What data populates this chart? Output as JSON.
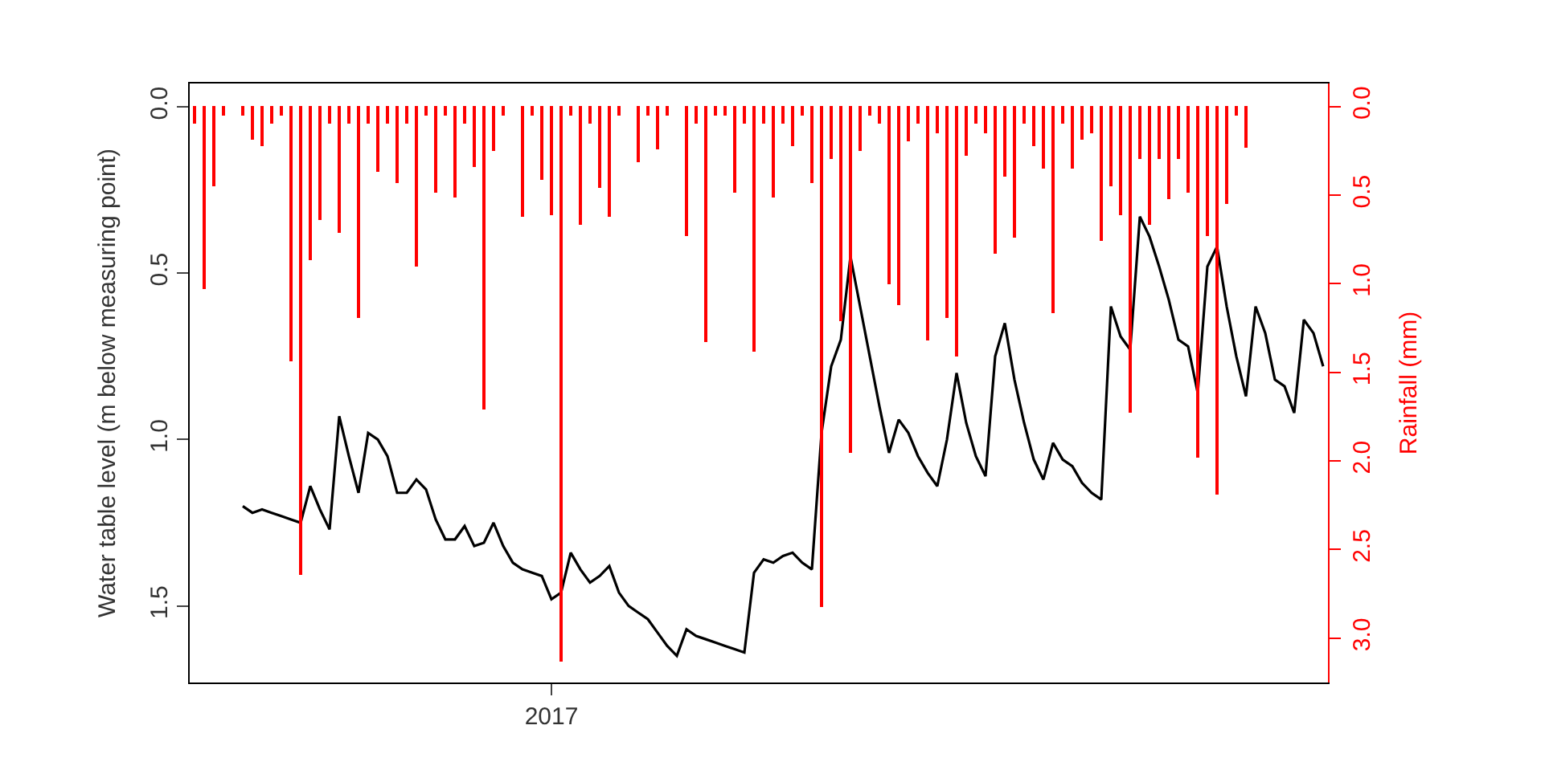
{
  "chart_data": {
    "type": "line",
    "ylabel": "Water table level (m below measuring point)",
    "y2label": "Rainfall (mm)",
    "categories": [
      null,
      null,
      null,
      null,
      null,
      null,
      null,
      null,
      null,
      null,
      null,
      null,
      null,
      null,
      null,
      null,
      null,
      null,
      null,
      null,
      null,
      null,
      null,
      null,
      null,
      null,
      null,
      null,
      null,
      null,
      null,
      null,
      null,
      null,
      null,
      null,
      null,
      "2017",
      null,
      null,
      null,
      null,
      null,
      null,
      null,
      null,
      null,
      null,
      null,
      null,
      null,
      null,
      null,
      null,
      null,
      null,
      null,
      null,
      null,
      null,
      null,
      null,
      null,
      null,
      null,
      null,
      null,
      null,
      null,
      null,
      null,
      null,
      null,
      null,
      null,
      null,
      null,
      null,
      null,
      null,
      null,
      null,
      null,
      null,
      null,
      null,
      null,
      null,
      null,
      null,
      null,
      null,
      null,
      null,
      null,
      null,
      null,
      null,
      null,
      null,
      null,
      null,
      null,
      null,
      null,
      null,
      null,
      null,
      null,
      null,
      null,
      null,
      null,
      null,
      null,
      null,
      null,
      null
    ],
    "series": [
      {
        "type": "bar",
        "axis": "y2",
        "color": "#ff0000",
        "values": [
          0.1,
          1.03,
          0.45,
          0.05,
          0,
          0.05,
          0.19,
          0.22,
          0.1,
          0.05,
          1.44,
          2.64,
          0.87,
          0.64,
          0.1,
          0.71,
          0.1,
          1.19,
          0.1,
          0.37,
          0.1,
          0.43,
          0.1,
          0.9,
          0.05,
          0.49,
          0.05,
          0.51,
          0.1,
          0.34,
          1.71,
          0.25,
          0.05,
          0,
          0.62,
          0.05,
          0.41,
          0.61,
          3.13,
          0.05,
          0.67,
          0.1,
          0.46,
          0.62,
          0.05,
          0,
          0.31,
          0.05,
          0.24,
          0.05,
          0,
          0.73,
          0.1,
          1.33,
          0.05,
          0.05,
          0.49,
          0.1,
          1.38,
          0.1,
          0.51,
          0.1,
          0.22,
          0.05,
          0.43,
          2.82,
          0.3,
          1.21,
          1.95,
          0.25,
          0.05,
          0.1,
          1.0,
          1.12,
          0.2,
          0.1,
          1.32,
          0.15,
          1.19,
          1.41,
          0.28,
          0.1,
          0.15,
          0.83,
          0.4,
          0.74,
          0.1,
          0.22,
          0.35,
          1.17,
          0.1,
          0.35,
          0.19,
          0.15,
          0.76,
          0.45,
          0.61,
          1.73,
          0.3,
          0.67,
          0.3,
          0.52,
          0.3,
          0.49,
          1.98,
          0.73,
          2.19,
          0.55,
          0.05,
          0.23,
          null,
          null,
          null,
          null,
          null,
          null,
          null,
          null
        ]
      },
      {
        "axis": "y",
        "color": "#000000",
        "values": [
          null,
          null,
          null,
          null,
          null,
          1.2,
          1.22,
          1.21,
          1.22,
          1.23,
          1.24,
          1.25,
          1.14,
          1.21,
          1.27,
          0.93,
          1.05,
          1.16,
          0.98,
          1.0,
          1.05,
          1.16,
          1.16,
          1.12,
          1.15,
          1.24,
          1.3,
          1.3,
          1.26,
          1.32,
          1.31,
          1.25,
          1.32,
          1.37,
          1.39,
          1.4,
          1.41,
          1.48,
          1.46,
          1.34,
          1.39,
          1.43,
          1.41,
          1.38,
          1.46,
          1.5,
          1.52,
          1.54,
          1.58,
          1.62,
          1.65,
          1.57,
          1.59,
          1.6,
          1.61,
          1.62,
          1.63,
          1.64,
          1.4,
          1.36,
          1.37,
          1.35,
          1.34,
          1.37,
          1.39,
          0.98,
          0.78,
          0.7,
          0.45,
          0.6,
          0.75,
          0.9,
          1.04,
          0.94,
          0.98,
          1.05,
          1.1,
          1.14,
          1.0,
          0.8,
          0.95,
          1.05,
          1.11,
          0.75,
          0.65,
          0.82,
          0.95,
          1.06,
          1.12,
          1.01,
          1.06,
          1.08,
          1.13,
          1.16,
          1.18,
          0.6,
          0.69,
          0.73,
          0.33,
          0.39,
          0.48,
          0.58,
          0.7,
          0.72,
          0.86,
          0.48,
          0.42,
          0.6,
          0.75,
          0.87,
          0.6,
          0.68,
          0.82,
          0.84,
          0.92,
          0.64,
          0.68,
          0.78
        ]
      }
    ],
    "ylim": [
      1.73,
      -0.07
    ],
    "yticks": [
      {
        "value": 0,
        "label": "0.0"
      },
      0.5,
      {
        "value": 1,
        "label": "1.0"
      },
      1.5
    ],
    "y2lim": [
      3.25,
      -0.13
    ],
    "y2ticks": [
      {
        "value": 0,
        "label": "0.0"
      },
      0.5,
      {
        "value": 1,
        "label": "1.0"
      },
      1.5,
      {
        "value": 2,
        "label": "2.0"
      },
      2.5,
      {
        "value": 3,
        "label": "3.0"
      }
    ]
  }
}
